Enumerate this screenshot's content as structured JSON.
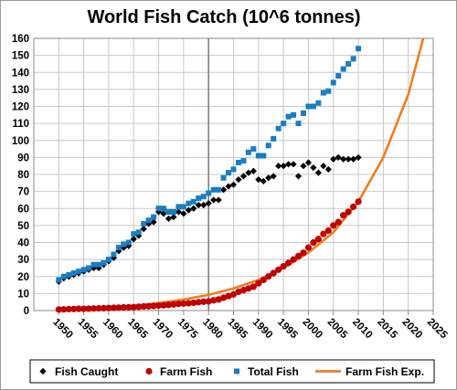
{
  "chart_data": {
    "type": "scatter",
    "title": "World Fish Catch (10^6 tonnes)",
    "xlim": [
      1945,
      2025
    ],
    "ylim": [
      0,
      160
    ],
    "x_ticks": [
      "1950",
      "1955",
      "1960",
      "1965",
      "1970",
      "1975",
      "1980",
      "1985",
      "1990",
      "1995",
      "2000",
      "2005",
      "2010",
      "2015",
      "2020",
      "2025"
    ],
    "y_ticks": [
      "0",
      "10",
      "20",
      "30",
      "40",
      "50",
      "60",
      "70",
      "80",
      "90",
      "100",
      "110",
      "120",
      "130",
      "140",
      "150",
      "160"
    ],
    "grid": true,
    "reference_line_x": 1980,
    "legend_position": "bottom",
    "series": [
      {
        "name": "Fish Caught",
        "marker": "diamond",
        "color": "#000000",
        "x": [
          1950,
          1951,
          1952,
          1953,
          1954,
          1955,
          1956,
          1957,
          1958,
          1959,
          1960,
          1961,
          1962,
          1963,
          1964,
          1965,
          1966,
          1967,
          1968,
          1969,
          1970,
          1971,
          1972,
          1973,
          1974,
          1975,
          1976,
          1977,
          1978,
          1979,
          1980,
          1981,
          1982,
          1983,
          1984,
          1985,
          1986,
          1987,
          1988,
          1989,
          1990,
          1991,
          1992,
          1993,
          1994,
          1995,
          1996,
          1997,
          1998,
          1999,
          2000,
          2001,
          2002,
          2003,
          2004,
          2005,
          2006,
          2007,
          2008,
          2009,
          2010
        ],
        "y": [
          17,
          19,
          20,
          21,
          22,
          23,
          24,
          25,
          25,
          27,
          29,
          31,
          35,
          37,
          38,
          42,
          44,
          48,
          51,
          52,
          58,
          57,
          54,
          55,
          58,
          57,
          59,
          60,
          62,
          62,
          63,
          65,
          65,
          71,
          73,
          74,
          77,
          79,
          81,
          82,
          77,
          76,
          78,
          79,
          85,
          85,
          86,
          86,
          79,
          85,
          87,
          84,
          81,
          85,
          83,
          89,
          90,
          89,
          89,
          89,
          90
        ]
      },
      {
        "name": "Farm Fish",
        "marker": "circle",
        "color": "#c00000",
        "x": [
          1950,
          1951,
          1952,
          1953,
          1954,
          1955,
          1956,
          1957,
          1958,
          1959,
          1960,
          1961,
          1962,
          1963,
          1964,
          1965,
          1966,
          1967,
          1968,
          1969,
          1970,
          1971,
          1972,
          1973,
          1974,
          1975,
          1976,
          1977,
          1978,
          1979,
          1980,
          1981,
          1982,
          1983,
          1984,
          1985,
          1986,
          1987,
          1988,
          1989,
          1990,
          1991,
          1992,
          1993,
          1994,
          1995,
          1996,
          1997,
          1998,
          1999,
          2000,
          2001,
          2002,
          2003,
          2004,
          2005,
          2006,
          2007,
          2008,
          2009,
          2010
        ],
        "y": [
          0.6,
          0.7,
          0.8,
          0.9,
          1.0,
          1.0,
          1.1,
          1.2,
          1.3,
          1.4,
          1.5,
          1.6,
          1.7,
          1.8,
          1.9,
          2.0,
          2.2,
          2.4,
          2.5,
          2.7,
          2.9,
          3.1,
          3.3,
          3.6,
          3.9,
          4.1,
          4.3,
          4.6,
          4.9,
          5.2,
          5.4,
          6.0,
          6.5,
          7.5,
          8.5,
          9.5,
          11,
          12,
          13,
          14,
          16,
          18,
          20,
          22,
          24,
          26,
          28,
          30,
          32,
          34,
          37,
          40,
          42,
          45,
          47,
          50,
          52,
          56,
          58,
          61,
          64
        ]
      },
      {
        "name": "Total Fish",
        "marker": "square",
        "color": "#1a7dc2",
        "x": [
          1950,
          1951,
          1952,
          1953,
          1954,
          1955,
          1956,
          1957,
          1958,
          1959,
          1960,
          1961,
          1962,
          1963,
          1964,
          1965,
          1966,
          1967,
          1968,
          1969,
          1970,
          1971,
          1972,
          1973,
          1974,
          1975,
          1976,
          1977,
          1978,
          1979,
          1980,
          1981,
          1982,
          1983,
          1984,
          1985,
          1986,
          1987,
          1988,
          1989,
          1990,
          1991,
          1992,
          1993,
          1994,
          1995,
          1996,
          1997,
          1998,
          1999,
          2000,
          2001,
          2002,
          2003,
          2004,
          2005,
          2006,
          2007,
          2008,
          2009,
          2010
        ],
        "y": [
          18,
          20,
          21,
          22,
          23,
          24,
          25,
          27,
          27,
          28,
          30,
          33,
          37,
          39,
          40,
          45,
          46,
          51,
          53,
          55,
          60,
          60,
          58,
          58,
          61,
          61,
          63,
          64,
          66,
          67,
          69,
          71,
          71,
          78,
          81,
          83,
          87,
          88,
          93,
          95,
          91,
          91,
          97,
          101,
          107,
          110,
          114,
          115,
          110,
          116,
          120,
          120,
          122,
          128,
          129,
          134,
          138,
          142,
          145,
          148,
          154
        ]
      },
      {
        "name": "Farm Fish Exp.",
        "marker": "line",
        "color": "#f07d1e",
        "x": [
          1950,
          1955,
          1960,
          1965,
          1970,
          1975,
          1980,
          1985,
          1990,
          1995,
          2000,
          2005,
          2010,
          2015,
          2020,
          2023
        ],
        "y": [
          0.6,
          1.0,
          1.7,
          2.8,
          4.4,
          6.5,
          9.2,
          13,
          18,
          25,
          34,
          46,
          64,
          90,
          127,
          160
        ]
      }
    ]
  }
}
